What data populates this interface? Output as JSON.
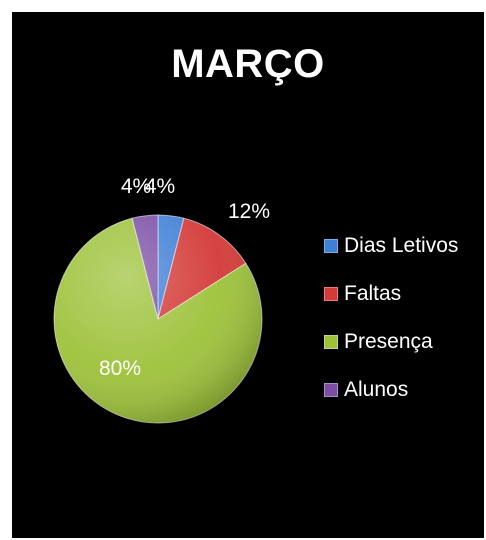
{
  "chart_data": {
    "type": "pie",
    "title": "MARÇO",
    "categories": [
      "Dias Letivos",
      "Faltas",
      "Presença",
      "Alunos"
    ],
    "values": [
      4,
      12,
      80,
      4
    ],
    "labels": [
      "4%",
      "12%",
      "80%",
      "4%"
    ],
    "colors": [
      "#3f7fd6",
      "#d33a38",
      "#9dc23a",
      "#7b4fa6"
    ],
    "legend_position": "right"
  }
}
